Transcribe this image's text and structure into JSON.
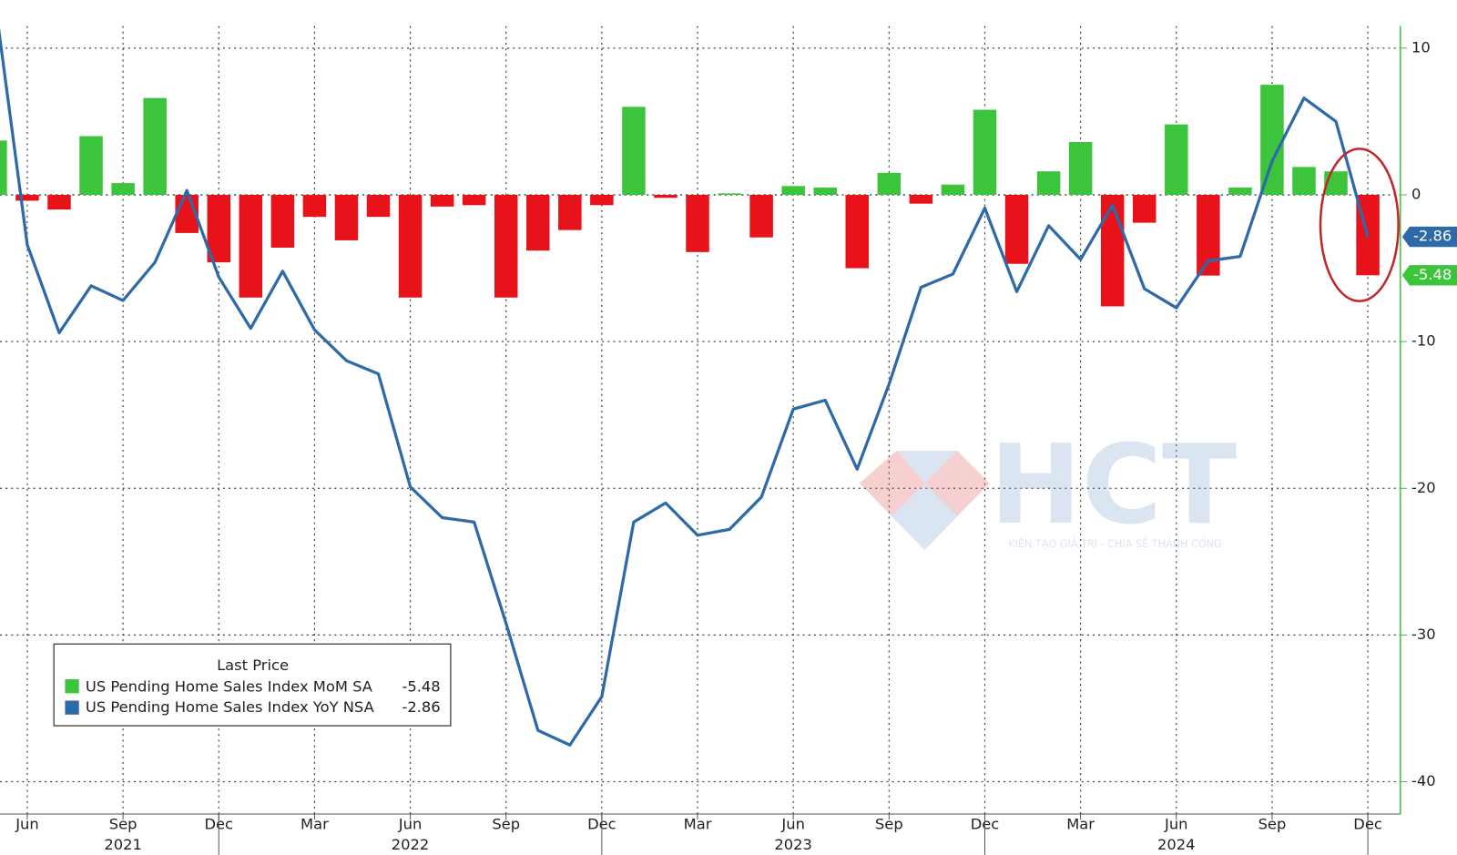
{
  "chart_data": {
    "type": "bar",
    "categories": [
      "2021-05",
      "2021-06",
      "2021-07",
      "2021-08",
      "2021-09",
      "2021-10",
      "2021-11",
      "2021-12",
      "2022-01",
      "2022-02",
      "2022-03",
      "2022-04",
      "2022-05",
      "2022-06",
      "2022-07",
      "2022-08",
      "2022-09",
      "2022-10",
      "2022-11",
      "2022-12",
      "2023-01",
      "2023-02",
      "2023-03",
      "2023-04",
      "2023-05",
      "2023-06",
      "2023-07",
      "2023-08",
      "2023-09",
      "2023-10",
      "2023-11",
      "2023-12",
      "2024-01",
      "2024-02",
      "2024-03",
      "2024-04",
      "2024-05",
      "2024-06",
      "2024-07",
      "2024-08",
      "2024-09",
      "2024-10",
      "2024-11",
      "2024-12"
    ],
    "series": [
      {
        "name": "US Pending Home Sales Index MoM SA",
        "type": "bar",
        "color": "#3cc43c",
        "negative_color": "#e8121b",
        "values": [
          3.7,
          -0.4,
          -1.0,
          4.0,
          0.8,
          6.6,
          -2.6,
          -4.6,
          -7.0,
          -3.6,
          -1.5,
          -3.1,
          -1.5,
          -7.0,
          -0.8,
          -0.7,
          -7.0,
          -3.8,
          -2.4,
          -0.7,
          6.0,
          -0.2,
          -3.9,
          0.1,
          -2.9,
          0.6,
          0.5,
          -5.0,
          1.5,
          -0.6,
          0.7,
          5.8,
          -4.7,
          1.6,
          3.6,
          -7.6,
          -1.9,
          4.8,
          -5.5,
          0.5,
          7.5,
          1.9,
          1.6,
          -5.48
        ]
      },
      {
        "name": "US Pending Home Sales Index YoY NSA",
        "type": "line",
        "color": "#2e6aa8",
        "values": [
          13,
          -3.4,
          -9.4,
          -6.2,
          -7.2,
          -4.6,
          0.3,
          -5.6,
          -9.1,
          -5.2,
          -9.2,
          -11.3,
          -12.2,
          -19.9,
          -22.0,
          -22.3,
          -29.2,
          -36.5,
          -37.5,
          -34.2,
          -22.3,
          -21.0,
          -23.2,
          -22.8,
          -20.6,
          -14.6,
          -14.0,
          -18.7,
          -12.9,
          -6.3,
          -5.4,
          -0.9,
          -6.6,
          -2.1,
          -4.4,
          -0.7,
          -6.4,
          -7.7,
          -4.5,
          -4.2,
          2.3,
          6.6,
          5.0,
          -2.86
        ]
      }
    ],
    "legend_title": "Last Price",
    "ylim": [
      -42.2,
      11.5
    ],
    "yticks": [
      10,
      0,
      -10,
      -20,
      -30,
      -40
    ],
    "grid": true,
    "xticks": [
      {
        "value": "2021-06",
        "label": "Jun"
      },
      {
        "value": "2021-09",
        "label": "Sep"
      },
      {
        "value": "2021-12",
        "label": "Dec"
      },
      {
        "value": "2022-03",
        "label": "Mar"
      },
      {
        "value": "2022-06",
        "label": "Jun"
      },
      {
        "value": "2022-09",
        "label": "Sep"
      },
      {
        "value": "2022-12",
        "label": "Dec"
      },
      {
        "value": "2023-03",
        "label": "Mar"
      },
      {
        "value": "2023-06",
        "label": "Jun"
      },
      {
        "value": "2023-09",
        "label": "Sep"
      },
      {
        "value": "2023-12",
        "label": "Dec"
      },
      {
        "value": "2024-03",
        "label": "Mar"
      },
      {
        "value": "2024-06",
        "label": "Jun"
      },
      {
        "value": "2024-09",
        "label": "Sep"
      },
      {
        "value": "2024-12",
        "label": "Dec"
      }
    ],
    "year_labels": [
      {
        "value": "2021-09",
        "label": "2021"
      },
      {
        "value": "2022-06",
        "label": "2022"
      },
      {
        "value": "2023-06",
        "label": "2023"
      },
      {
        "value": "2024-06",
        "label": "2024"
      }
    ],
    "watermark": {
      "text": "HCT",
      "tagline": "KIẾN TẠO GIÁ TRỊ - CHIA SẺ THÀNH CÔNG"
    }
  }
}
